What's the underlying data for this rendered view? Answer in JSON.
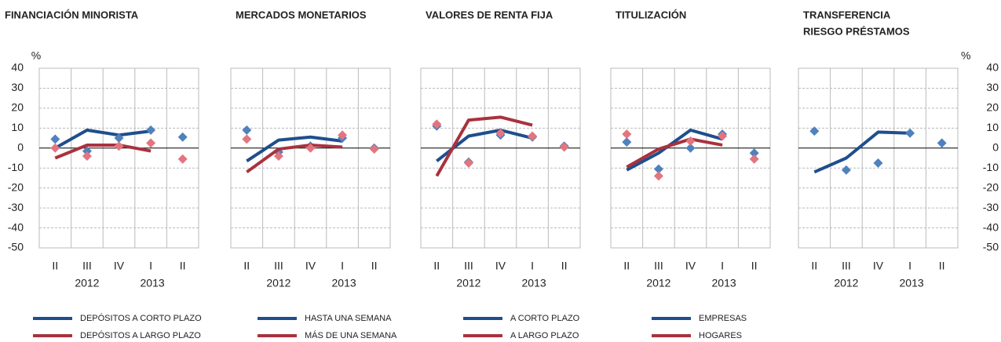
{
  "chart_data": [
    {
      "type": "line",
      "title": [
        "FINANCIACIÓN MINORISTA"
      ],
      "categories": [
        "II",
        "III",
        "IV",
        "I",
        "II"
      ],
      "x_groups": [
        "2012",
        "2013"
      ],
      "ylim": [
        -50,
        40
      ],
      "yticks": [
        40,
        30,
        20,
        10,
        0,
        -10,
        -20,
        -30,
        -40,
        -50
      ],
      "ytick_side": "left",
      "y_label": "%",
      "series": [
        {
          "name": "DEPÓSITOS A CORTO PLAZO",
          "color": "#1f4e8c",
          "marker_color": "#4f81bd",
          "values": [
            0,
            9,
            6.5,
            8.5,
            null
          ],
          "marker_values": [
            4.5,
            -1.5,
            5,
            9,
            5.5
          ]
        },
        {
          "name": "DEPÓSITOS A LARGO PLAZO",
          "color": "#a8323e",
          "marker_color": "#e3757e",
          "values": [
            -5,
            1.5,
            1.5,
            -1.5,
            null
          ],
          "marker_values": [
            0,
            -4,
            1,
            2.5,
            -5.5
          ]
        }
      ]
    },
    {
      "type": "line",
      "title": [
        "MERCADOS MONETARIOS"
      ],
      "categories": [
        "II",
        "III",
        "IV",
        "I",
        "II"
      ],
      "x_groups": [
        "2012",
        "2013"
      ],
      "ylim": [
        -50,
        40
      ],
      "yticks": [
        40,
        30,
        20,
        10,
        0,
        -10,
        -20,
        -30,
        -40,
        -50
      ],
      "series": [
        {
          "name": "HASTA UNA SEMANA",
          "color": "#1f4e8c",
          "marker_color": "#4f81bd",
          "values": [
            -6.5,
            4,
            5.5,
            3.5,
            null
          ],
          "marker_values": [
            9,
            -2,
            1,
            5,
            0
          ]
        },
        {
          "name": "MÁS DE UNA SEMANA",
          "color": "#a8323e",
          "marker_color": "#e3757e",
          "values": [
            -12,
            -0.5,
            1.5,
            0.5,
            null
          ],
          "marker_values": [
            4.5,
            -4,
            0,
            6.5,
            -0.5
          ]
        }
      ]
    },
    {
      "type": "line",
      "title": [
        "VALORES DE RENTA FIJA"
      ],
      "categories": [
        "II",
        "III",
        "IV",
        "I",
        "II"
      ],
      "x_groups": [
        "2012",
        "2013"
      ],
      "ylim": [
        -50,
        40
      ],
      "yticks": [
        40,
        30,
        20,
        10,
        0,
        -10,
        -20,
        -30,
        -40,
        -50
      ],
      "series": [
        {
          "name": "A CORTO PLAZO",
          "color": "#1f4e8c",
          "marker_color": "#4f81bd",
          "values": [
            -6.5,
            6,
            9,
            5,
            null
          ],
          "marker_values": [
            11,
            -7,
            6.5,
            5.5,
            1
          ]
        },
        {
          "name": "A LARGO PLAZO",
          "color": "#a8323e",
          "marker_color": "#e3757e",
          "values": [
            -14,
            14,
            15.5,
            11.5,
            null
          ],
          "marker_values": [
            12,
            -7.5,
            7.5,
            6,
            0.5
          ]
        }
      ]
    },
    {
      "type": "line",
      "title": [
        "TITULIZACIÓN"
      ],
      "categories": [
        "II",
        "III",
        "IV",
        "I",
        "II"
      ],
      "x_groups": [
        "2012",
        "2013"
      ],
      "ylim": [
        -50,
        40
      ],
      "yticks": [
        40,
        30,
        20,
        10,
        0,
        -10,
        -20,
        -30,
        -40,
        -50
      ],
      "series": [
        {
          "name": "EMPRESAS",
          "color": "#1f4e8c",
          "marker_color": "#4f81bd",
          "values": [
            -11,
            -2.5,
            9,
            4.5,
            null
          ],
          "marker_values": [
            3,
            -10.5,
            0,
            7,
            -2.5
          ]
        },
        {
          "name": "HOGARES",
          "color": "#a8323e",
          "marker_color": "#e3757e",
          "values": [
            -9.5,
            -0.5,
            4.5,
            1.5,
            null
          ],
          "marker_values": [
            7,
            -14,
            3.5,
            6,
            -5.5
          ]
        }
      ]
    },
    {
      "type": "line",
      "title": [
        "TRANSFERENCIA",
        "RIESGO PRÉSTAMOS"
      ],
      "categories": [
        "II",
        "III",
        "IV",
        "I",
        "II"
      ],
      "x_groups": [
        "2012",
        "2013"
      ],
      "ylim": [
        -50,
        40
      ],
      "yticks": [
        40,
        30,
        20,
        10,
        0,
        -10,
        -20,
        -30,
        -40,
        -50
      ],
      "ytick_side": "right",
      "y_label": "%",
      "series": [
        {
          "color": "#1f4e8c",
          "marker_color": "#4f81bd",
          "values": [
            -12,
            -5,
            8,
            7.5,
            null
          ],
          "marker_values": [
            8.5,
            -11,
            -7.5,
            7.5,
            2.5
          ]
        }
      ]
    }
  ]
}
